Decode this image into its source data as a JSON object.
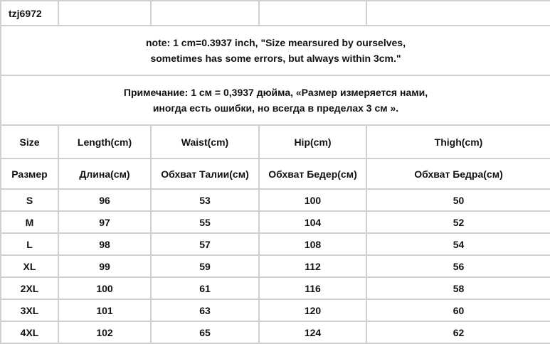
{
  "product_code": "tzj6972",
  "note_en": [
    "note: 1 cm=0.3937 inch, \"Size mearsured by ourselves,",
    "sometimes has some errors, but always within 3cm.\""
  ],
  "note_ru": [
    "Примечание: 1 см = 0,3937 дюйма, «Размер измеряется нами,",
    "иногда есть ошибки, но всегда в пределах 3 см »."
  ],
  "headers_en": [
    "Size",
    "Length(cm)",
    "Waist(cm)",
    "Hip(cm)",
    "Thigh(cm)"
  ],
  "headers_ru": [
    "Размер",
    "Длина(см)",
    "Обхват Талии(см)",
    "Обхват Бедер(см)",
    "Обхват Бедра(см)"
  ],
  "rows": [
    [
      "S",
      "96",
      "53",
      "100",
      "50"
    ],
    [
      "M",
      "97",
      "55",
      "104",
      "52"
    ],
    [
      "L",
      "98",
      "57",
      "108",
      "54"
    ],
    [
      "XL",
      "99",
      "59",
      "112",
      "56"
    ],
    [
      "2XL",
      "100",
      "61",
      "116",
      "58"
    ],
    [
      "3XL",
      "101",
      "63",
      "120",
      "60"
    ],
    [
      "4XL",
      "102",
      "65",
      "124",
      "62"
    ]
  ]
}
